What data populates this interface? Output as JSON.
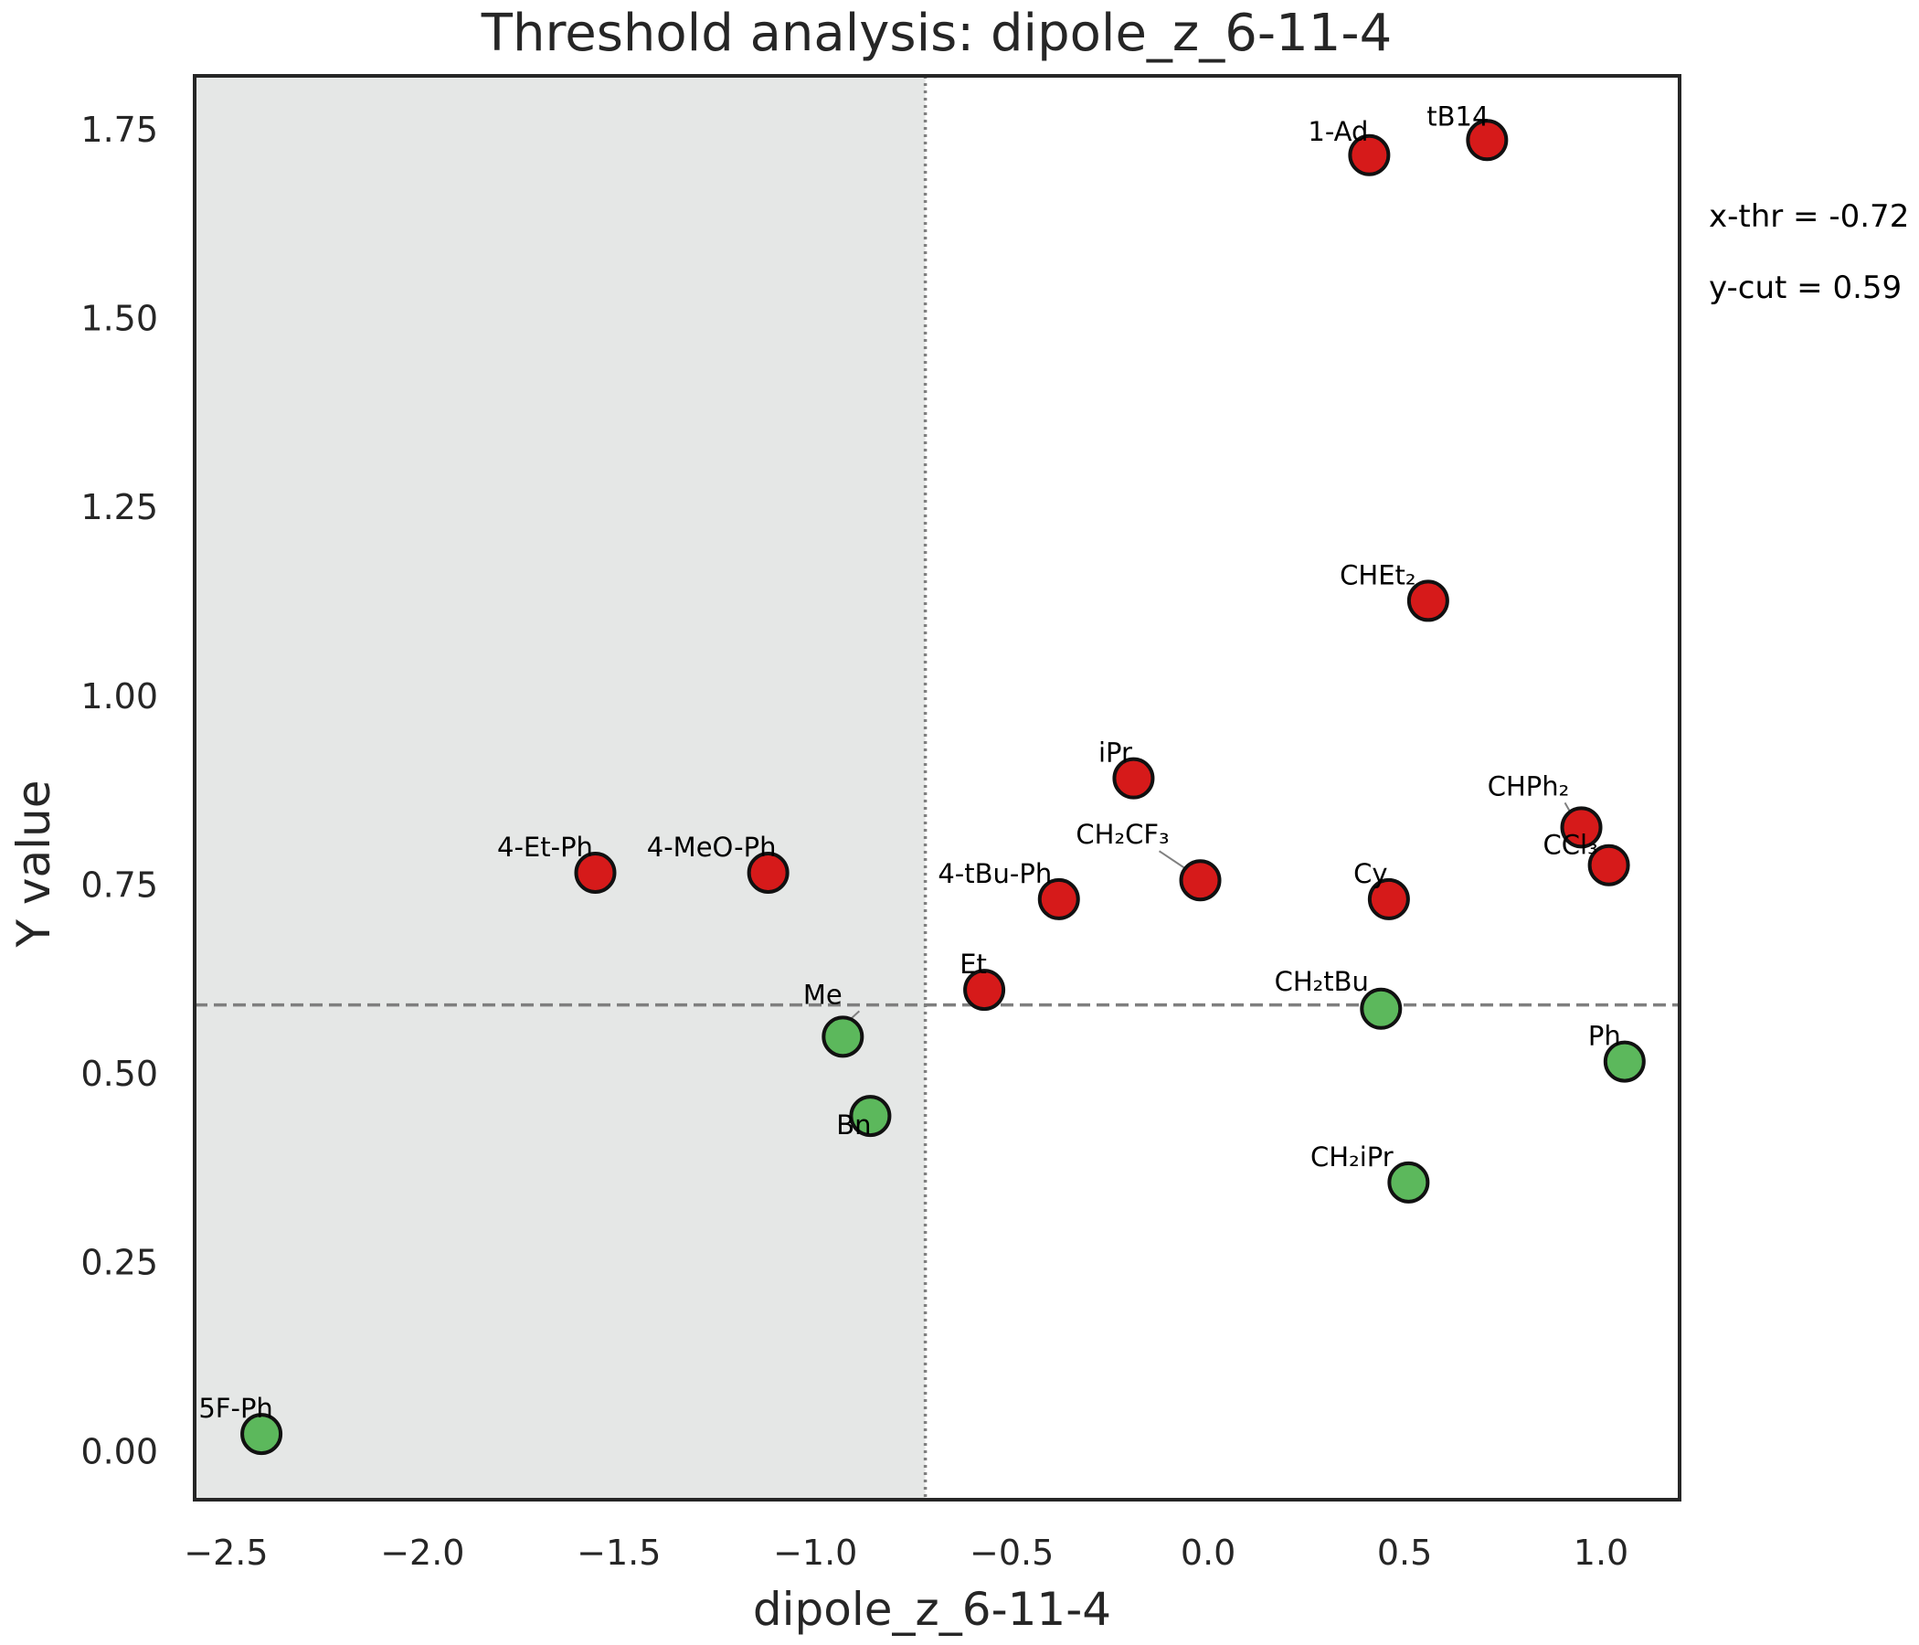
{
  "chart_data": {
    "type": "scatter",
    "title": "Threshold analysis: dipole_z_6-11-4",
    "xlabel": "dipole_z_6-11-4",
    "ylabel": "Y value",
    "xlim": [
      -2.58,
      1.2
    ],
    "ylim": [
      -0.065,
      1.82
    ],
    "x_ticks": [
      -2.5,
      -2.0,
      -1.5,
      -1.0,
      -0.5,
      0.0,
      0.5,
      1.0
    ],
    "x_tick_labels": [
      "−2.5",
      "−2.0",
      "−1.5",
      "−1.0",
      "−0.5",
      "0.0",
      "0.5",
      "1.0"
    ],
    "y_ticks": [
      0.0,
      0.25,
      0.5,
      0.75,
      1.0,
      1.25,
      1.5,
      1.75
    ],
    "y_tick_labels": [
      "0.00",
      "0.25",
      "0.50",
      "0.75",
      "1.00",
      "1.25",
      "1.50",
      "1.75"
    ],
    "grid": false,
    "x_threshold": -0.72,
    "y_cut": 0.59,
    "annotations": [
      "x-thr = -0.72",
      "y-cut = 0.59"
    ],
    "colors": {
      "above": "#d61a1a",
      "below": "#5cb85c",
      "shade": "#e5e7e6",
      "threshold_line": "#7f7f7f"
    },
    "points": [
      {
        "label": "1-Ad",
        "x": 0.41,
        "y": 1.715,
        "group": "above"
      },
      {
        "label": "tB14",
        "x": 0.71,
        "y": 1.735,
        "group": "above"
      },
      {
        "label": "CHEt₂",
        "x": 0.56,
        "y": 1.125,
        "group": "above"
      },
      {
        "label": "iPr",
        "x": -0.19,
        "y": 0.89,
        "group": "above"
      },
      {
        "label": "CHPh₂",
        "x": 0.95,
        "y": 0.825,
        "group": "above"
      },
      {
        "label": "CCl₃",
        "x": 1.02,
        "y": 0.775,
        "group": "above"
      },
      {
        "label": "4-Et-Ph",
        "x": -1.56,
        "y": 0.765,
        "group": "above"
      },
      {
        "label": "4-MeO-Ph",
        "x": -1.12,
        "y": 0.765,
        "group": "above"
      },
      {
        "label": "CH₂CF₃",
        "x": -0.02,
        "y": 0.755,
        "group": "above"
      },
      {
        "label": "4-tBu-Ph",
        "x": -0.38,
        "y": 0.73,
        "group": "above"
      },
      {
        "label": "Cy",
        "x": 0.46,
        "y": 0.73,
        "group": "above"
      },
      {
        "label": "Et",
        "x": -0.57,
        "y": 0.61,
        "group": "above"
      },
      {
        "label": "CH₂tBu",
        "x": 0.44,
        "y": 0.585,
        "group": "below"
      },
      {
        "label": "Me",
        "x": -0.93,
        "y": 0.548,
        "group": "below"
      },
      {
        "label": "Ph",
        "x": 1.06,
        "y": 0.515,
        "group": "below"
      },
      {
        "label": "Bn",
        "x": -0.86,
        "y": 0.443,
        "group": "below"
      },
      {
        "label": "CH₂iPr",
        "x": 0.51,
        "y": 0.355,
        "group": "below"
      },
      {
        "label": "5F-Ph",
        "x": -2.41,
        "y": 0.022,
        "group": "below"
      }
    ]
  }
}
